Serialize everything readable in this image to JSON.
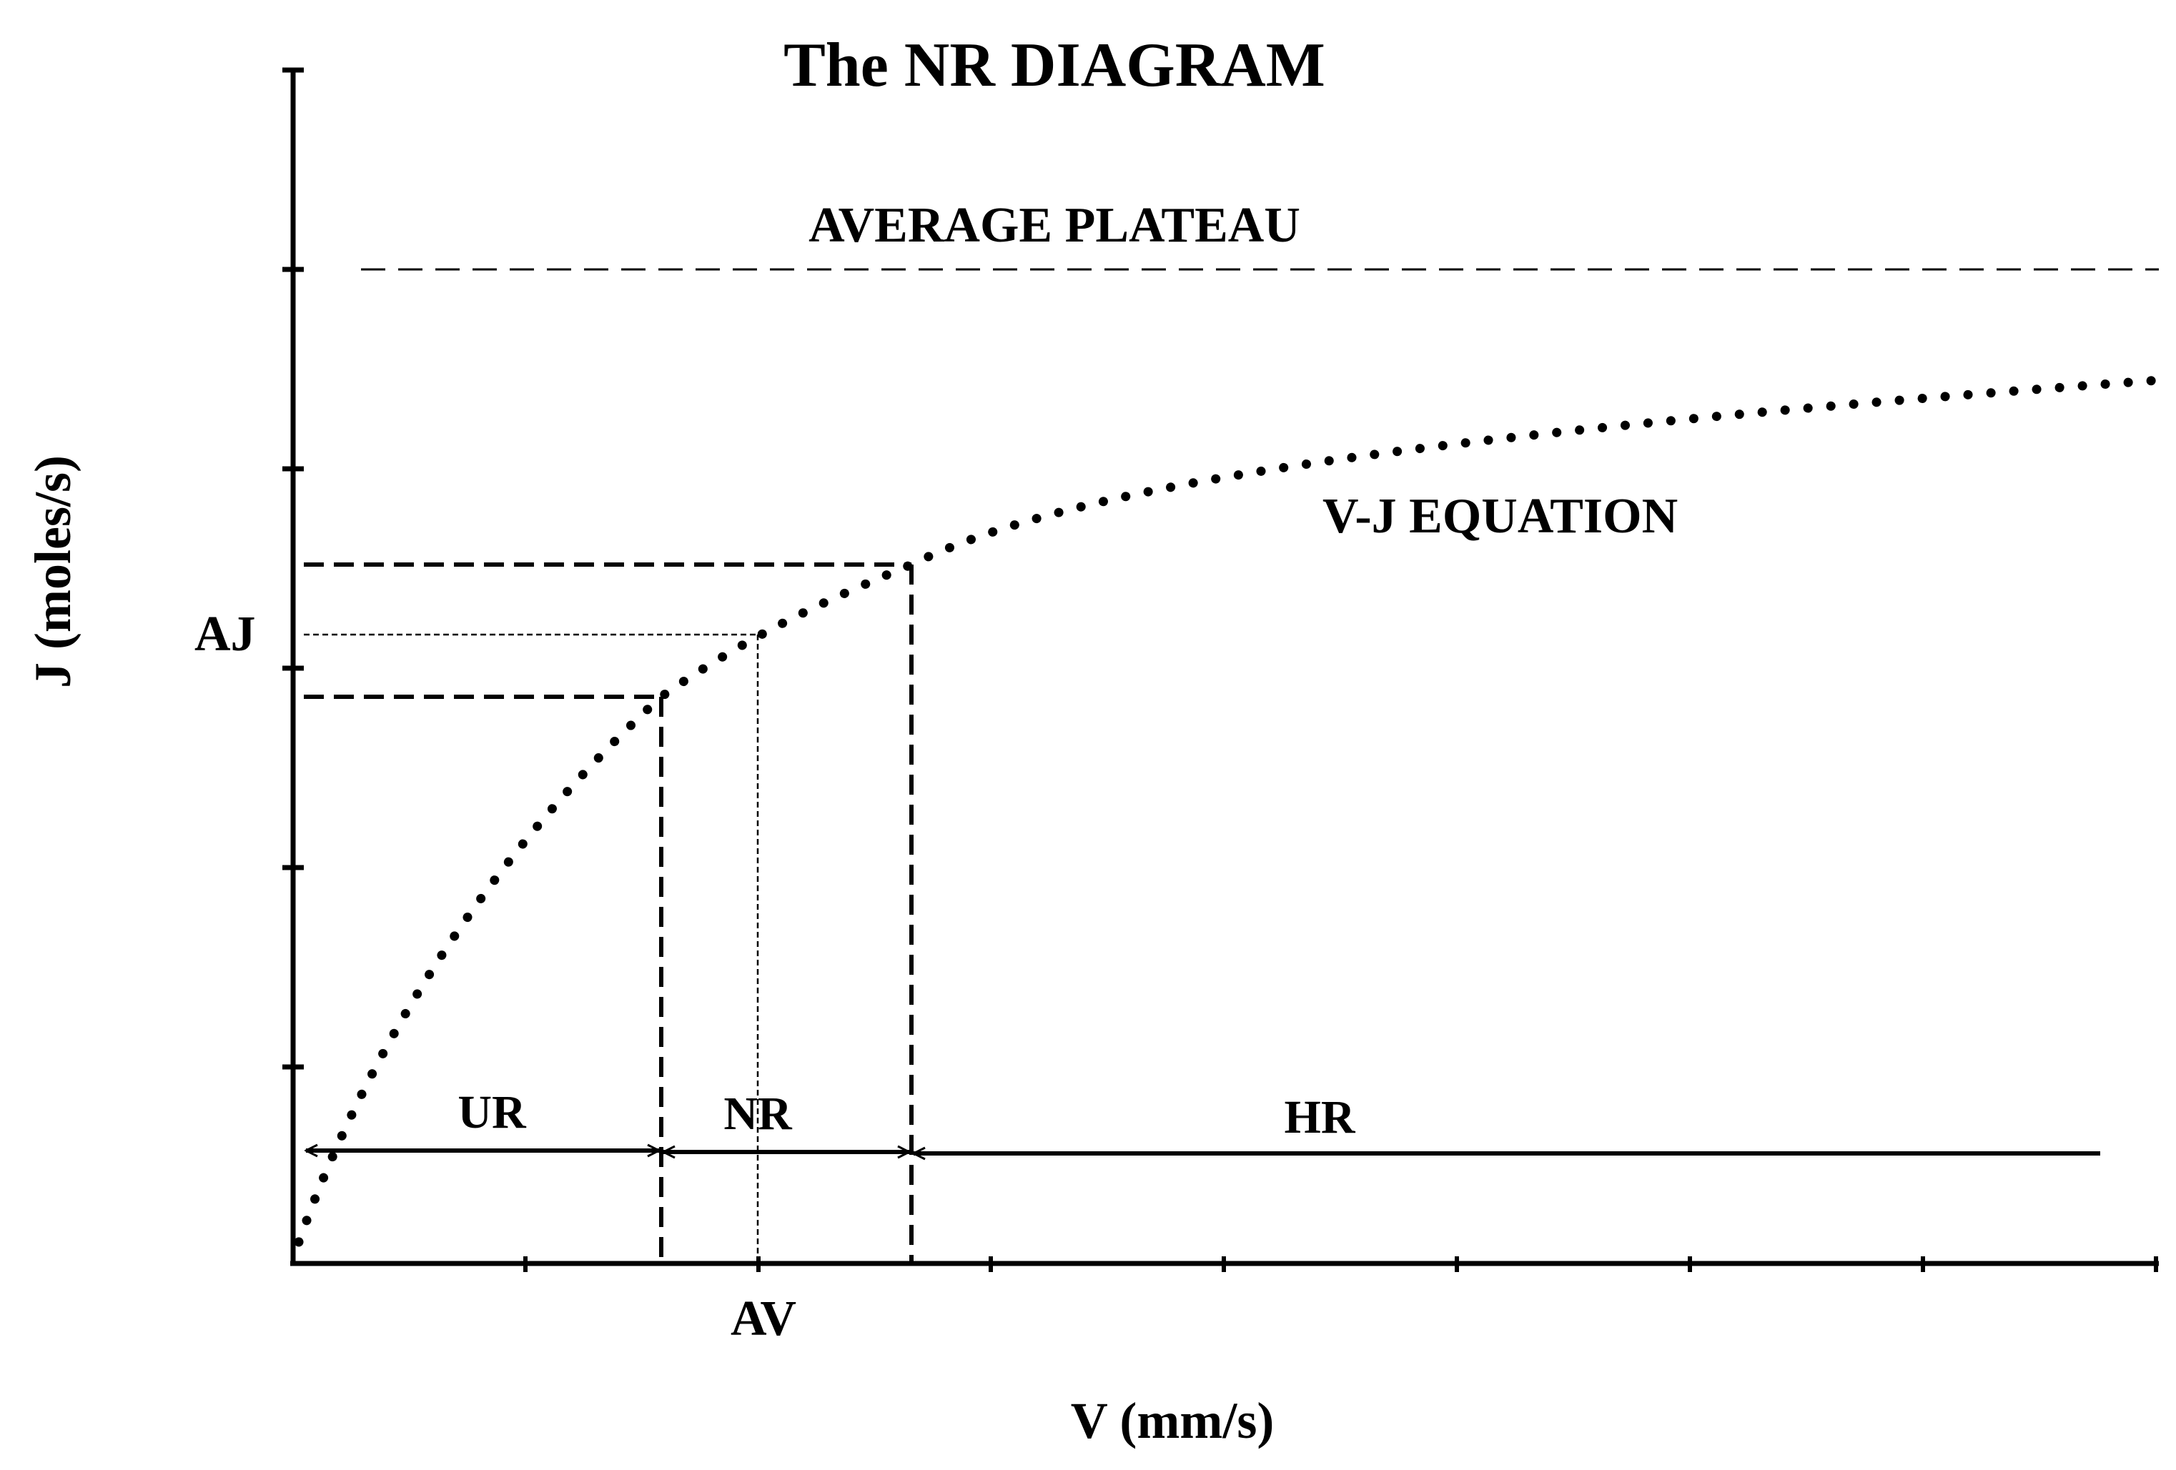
{
  "title": "The NR DIAGRAM",
  "axes": {
    "x_label": "V (mm/s)",
    "y_label": "J (moles/s)"
  },
  "labels": {
    "plateau": "AVERAGE PLATEAU",
    "curve": "V-J EQUATION",
    "aj": "AJ",
    "av": "AV",
    "regions": {
      "ur": "UR",
      "nr": "NR",
      "hr": "HR"
    }
  },
  "colors": {
    "ink": "#000000",
    "background": "#ffffff"
  }
}
